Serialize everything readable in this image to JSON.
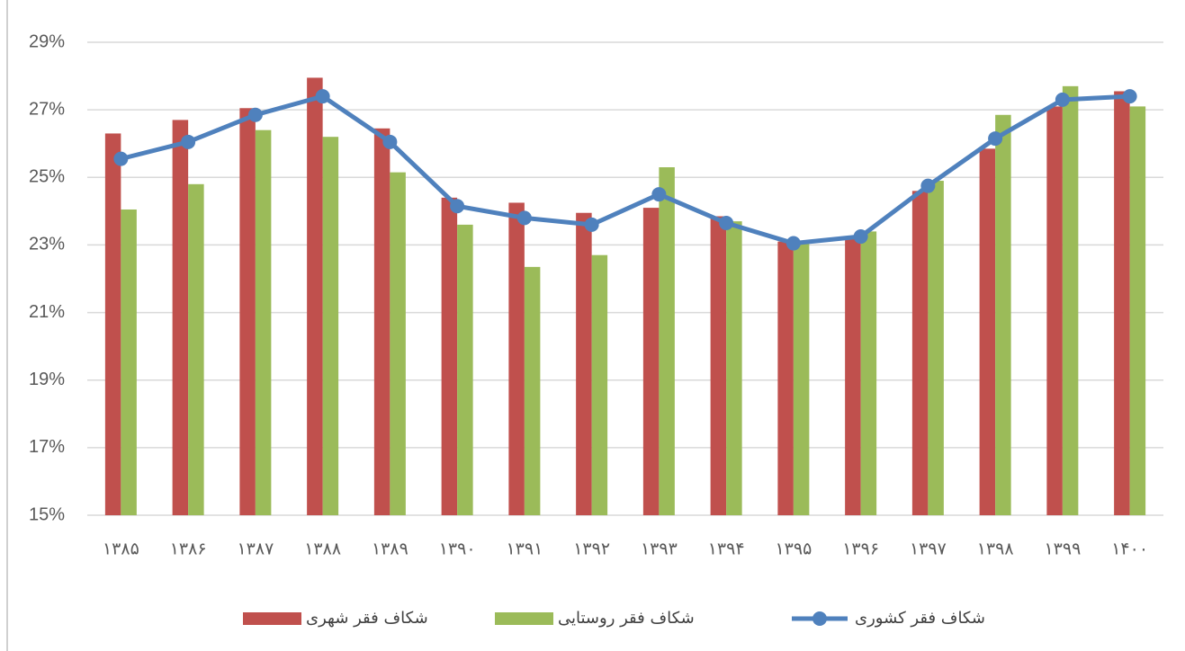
{
  "chart_data": {
    "type": "bar-line",
    "categories": [
      "۱۳۸۵",
      "۱۳۸۶",
      "۱۳۸۷",
      "۱۳۸۸",
      "۱۳۸۹",
      "۱۳۹۰",
      "۱۳۹۱",
      "۱۳۹۲",
      "۱۳۹۳",
      "۱۳۹۴",
      "۱۳۹۵",
      "۱۳۹۶",
      "۱۳۹۷",
      "۱۳۹۸",
      "۱۳۹۹",
      "۱۴۰۰"
    ],
    "series": [
      {
        "name": "شکاف فقر شهری",
        "type": "bar",
        "color": "#c0504d",
        "values": [
          26.3,
          26.7,
          27.05,
          27.95,
          26.45,
          24.4,
          24.25,
          23.95,
          24.1,
          23.85,
          23.1,
          23.2,
          24.6,
          25.85,
          27.1,
          27.55
        ]
      },
      {
        "name": "شکاف فقر روستایی",
        "type": "bar",
        "color": "#9bbb59",
        "values": [
          24.05,
          24.8,
          26.4,
          26.2,
          25.15,
          23.6,
          22.35,
          22.7,
          25.3,
          23.7,
          23.05,
          23.4,
          24.9,
          26.85,
          27.7,
          27.1
        ]
      },
      {
        "name": "شکاف فقر کشوری",
        "type": "line",
        "color": "#4f81bd",
        "values": [
          25.55,
          26.05,
          26.85,
          27.4,
          26.05,
          24.15,
          23.8,
          23.6,
          24.5,
          23.65,
          23.05,
          23.25,
          24.75,
          26.15,
          27.3,
          27.4
        ]
      }
    ],
    "ylim": [
      15,
      29
    ],
    "yticks": [
      {
        "value": 15,
        "label": "15%"
      },
      {
        "value": 17,
        "label": "17%"
      },
      {
        "value": 19,
        "label": "19%"
      },
      {
        "value": 21,
        "label": "21%"
      },
      {
        "value": 23,
        "label": "23%"
      },
      {
        "value": 25,
        "label": "25%"
      },
      {
        "value": 27,
        "label": "27%"
      },
      {
        "value": 29,
        "label": "29%"
      }
    ],
    "grid": true,
    "legend": "bottom"
  }
}
